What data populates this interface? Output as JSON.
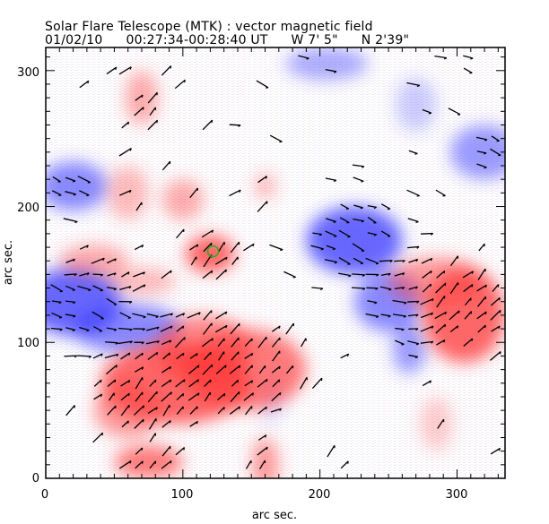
{
  "title": {
    "line1": "Solar Flare Telescope (MTK) : vector magnetic field",
    "date": "01/02/10",
    "time_range": "00:27:34-00:28:40 UT",
    "lon": "W 7' 5\"",
    "lat": "N 2'39\""
  },
  "axes": {
    "xlabel": "arc sec.",
    "ylabel": "arc sec.",
    "xticks": [
      "0",
      "100",
      "200",
      "300"
    ],
    "yticks": [
      "0",
      "100",
      "200",
      "300"
    ],
    "xrange": [
      0,
      335
    ],
    "yrange": [
      0,
      317
    ]
  },
  "colors": {
    "positive": "#ff3b3b",
    "negative": "#3b3bff",
    "arrow": "#000000",
    "marker": "#22b022"
  },
  "chart_data": {
    "type": "heatmap",
    "title": "Solar Flare Telescope (MTK) : vector magnetic field",
    "xlabel": "arc sec.",
    "ylabel": "arc sec.",
    "xlim": [
      0,
      335
    ],
    "ylim": [
      0,
      317
    ],
    "positive_regions": [
      {
        "x": 95,
        "y": 70,
        "rx": 55,
        "ry": 30,
        "strength": 0.9
      },
      {
        "x": 145,
        "y": 80,
        "rx": 45,
        "ry": 30,
        "strength": 0.8
      },
      {
        "x": 115,
        "y": 95,
        "rx": 35,
        "ry": 25,
        "strength": 0.7
      },
      {
        "x": 60,
        "y": 50,
        "rx": 25,
        "ry": 20,
        "strength": 0.6
      },
      {
        "x": 75,
        "y": 12,
        "rx": 25,
        "ry": 12,
        "strength": 0.8
      },
      {
        "x": 160,
        "y": 10,
        "rx": 10,
        "ry": 20,
        "strength": 0.6
      },
      {
        "x": 120,
        "y": 165,
        "rx": 18,
        "ry": 14,
        "strength": 0.9
      },
      {
        "x": 100,
        "y": 205,
        "rx": 15,
        "ry": 15,
        "strength": 0.5
      },
      {
        "x": 70,
        "y": 280,
        "rx": 12,
        "ry": 20,
        "strength": 0.5
      },
      {
        "x": 60,
        "y": 210,
        "rx": 15,
        "ry": 20,
        "strength": 0.4
      },
      {
        "x": 35,
        "y": 160,
        "rx": 25,
        "ry": 12,
        "strength": 0.5
      },
      {
        "x": 70,
        "y": 145,
        "rx": 25,
        "ry": 10,
        "strength": 0.4
      },
      {
        "x": 305,
        "y": 120,
        "rx": 30,
        "ry": 35,
        "strength": 0.9
      },
      {
        "x": 285,
        "y": 145,
        "rx": 35,
        "ry": 18,
        "strength": 0.6
      },
      {
        "x": 160,
        "y": 215,
        "rx": 8,
        "ry": 10,
        "strength": 0.4
      },
      {
        "x": 285,
        "y": 40,
        "rx": 12,
        "ry": 20,
        "strength": 0.3
      }
    ],
    "negative_regions": [
      {
        "x": 20,
        "y": 130,
        "rx": 35,
        "ry": 25,
        "strength": 0.9
      },
      {
        "x": 60,
        "y": 110,
        "rx": 40,
        "ry": 18,
        "strength": 0.7
      },
      {
        "x": 225,
        "y": 175,
        "rx": 35,
        "ry": 25,
        "strength": 0.9
      },
      {
        "x": 250,
        "y": 130,
        "rx": 25,
        "ry": 22,
        "strength": 0.7
      },
      {
        "x": 265,
        "y": 95,
        "rx": 12,
        "ry": 18,
        "strength": 0.6
      },
      {
        "x": 20,
        "y": 215,
        "rx": 25,
        "ry": 18,
        "strength": 0.7
      },
      {
        "x": 205,
        "y": 305,
        "rx": 30,
        "ry": 12,
        "strength": 0.5
      },
      {
        "x": 320,
        "y": 240,
        "rx": 25,
        "ry": 20,
        "strength": 0.6
      },
      {
        "x": 270,
        "y": 275,
        "rx": 15,
        "ry": 20,
        "strength": 0.3
      },
      {
        "x": 165,
        "y": 60,
        "rx": 8,
        "ry": 20,
        "strength": 0.2
      }
    ],
    "marker": {
      "x": 122,
      "y": 167
    }
  }
}
